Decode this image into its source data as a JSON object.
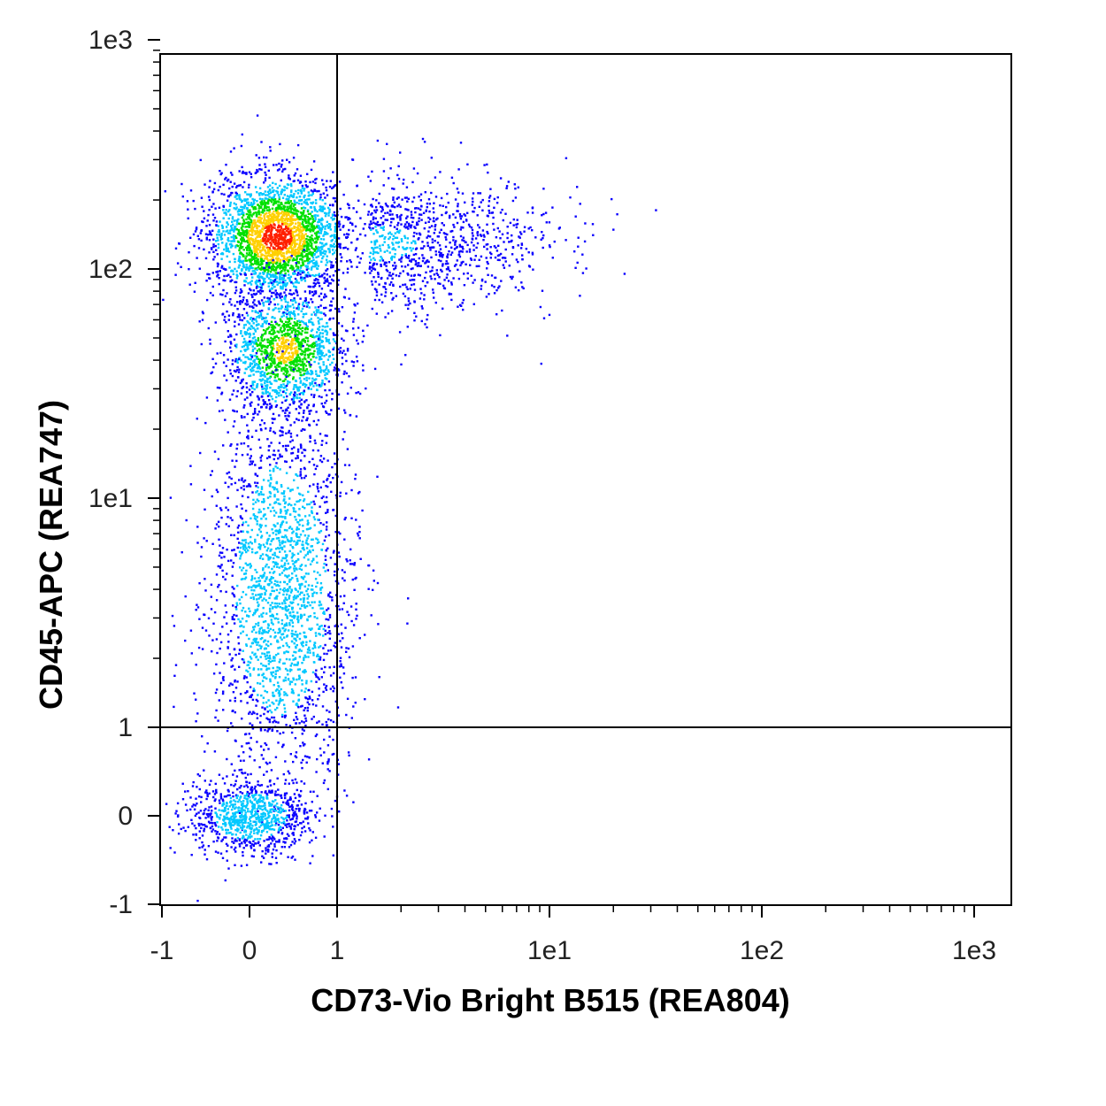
{
  "chart_data": {
    "type": "scatter",
    "subtype": "flow-cytometry density dot plot",
    "xlabel": "CD73-Vio Bright B515 (REA804)",
    "ylabel": "CD45-APC (REA747)",
    "scale": "biexponential (linear near zero, log above 1)",
    "xlim": [
      -1,
      1000
    ],
    "ylim": [
      -1,
      1000
    ],
    "x_ticks": [
      {
        "value": -1,
        "label": "-1"
      },
      {
        "value": 0,
        "label": "0"
      },
      {
        "value": 1,
        "label": "1"
      },
      {
        "value": 10,
        "label": "1e1"
      },
      {
        "value": 100,
        "label": "1e2"
      },
      {
        "value": 1000,
        "label": "1e3"
      }
    ],
    "y_ticks": [
      {
        "value": -1,
        "label": "-1"
      },
      {
        "value": 0,
        "label": "0"
      },
      {
        "value": 1,
        "label": "1"
      },
      {
        "value": 10,
        "label": "1e1"
      },
      {
        "value": 100,
        "label": "1e2"
      },
      {
        "value": 1000,
        "label": "1e3"
      }
    ],
    "quadrant_gate": {
      "x": 1,
      "y": 1
    },
    "populations": [
      {
        "x_center": 0.3,
        "y_center": 140,
        "relative_density": 1.0
      },
      {
        "x_center": 0.4,
        "y_center": 45,
        "relative_density": 0.7
      },
      {
        "x_center": 0.35,
        "y_center": 4,
        "relative_density": 0.35
      },
      {
        "x_center": 0.0,
        "y_center": 0.0,
        "relative_density": 0.3
      },
      {
        "x_center": 2.5,
        "y_center": 130,
        "relative_density": 0.15
      }
    ],
    "colormap": [
      "#0a00ff",
      "#00c8ff",
      "#00e000",
      "#ffd000",
      "#ff2000"
    ],
    "grid": false,
    "legend": "none"
  }
}
